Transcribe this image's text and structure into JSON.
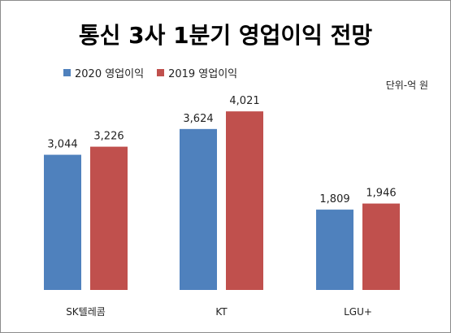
{
  "chart_data": {
    "type": "bar",
    "title": "통신 3사 1분기 영업이익 전망",
    "unit_label": "단위-억 원",
    "categories": [
      "SK텔레콤",
      "KT",
      "LGU+"
    ],
    "series": [
      {
        "name": "2020 영업이익",
        "color": "#4f81bd",
        "values": [
          3044,
          3624,
          1809
        ],
        "labels": [
          "3,044",
          "3,624",
          "1,809"
        ]
      },
      {
        "name": "2019 영업이익",
        "color": "#c0504d",
        "values": [
          3226,
          4021,
          1946
        ],
        "labels": [
          "3,226",
          "4,021",
          "1,946"
        ]
      }
    ],
    "ylim": [
      0,
      4700
    ],
    "legend_position": "top-left",
    "grid": false
  }
}
